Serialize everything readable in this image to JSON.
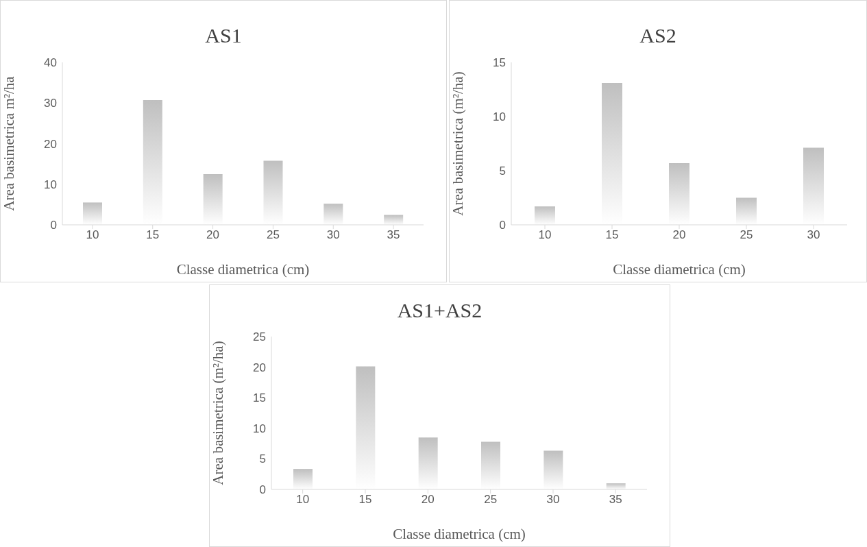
{
  "chart_data": [
    {
      "type": "bar",
      "title": "AS1",
      "xlabel": "Classe diametrica (cm)",
      "ylabel": "Area basimetrica m²/ha",
      "categories": [
        "10",
        "15",
        "20",
        "25",
        "30",
        "35"
      ],
      "values": [
        5.5,
        30.7,
        12.4,
        15.8,
        5.2,
        2.4
      ],
      "color": "#7f7f7f",
      "ylim": [
        0,
        40
      ],
      "yticks": [
        0,
        10,
        20,
        30,
        40
      ],
      "grid": false
    },
    {
      "type": "bar",
      "title": "AS2",
      "xlabel": "Classe diametrica (cm)",
      "ylabel": "Area basimetrica  (m²/ha)",
      "categories": [
        "10",
        "15",
        "20",
        "25",
        "30"
      ],
      "values": [
        1.7,
        13.1,
        5.7,
        2.5,
        7.1
      ],
      "color": "#7f7f7f",
      "ylim": [
        0,
        15
      ],
      "yticks": [
        0,
        5,
        10,
        15
      ],
      "grid": false
    },
    {
      "type": "bar",
      "title": "AS1+AS2",
      "xlabel": "Classe diametrica (cm)",
      "ylabel": "Area basimetrica  (m²/ha)",
      "categories": [
        "10",
        "15",
        "20",
        "25",
        "30",
        "35"
      ],
      "values": [
        3.3,
        20.1,
        8.5,
        7.8,
        6.3,
        1.0
      ],
      "color": "#7f7f7f",
      "ylim": [
        0,
        25
      ],
      "yticks": [
        0,
        5,
        10,
        15,
        20,
        25
      ],
      "grid": false
    }
  ]
}
